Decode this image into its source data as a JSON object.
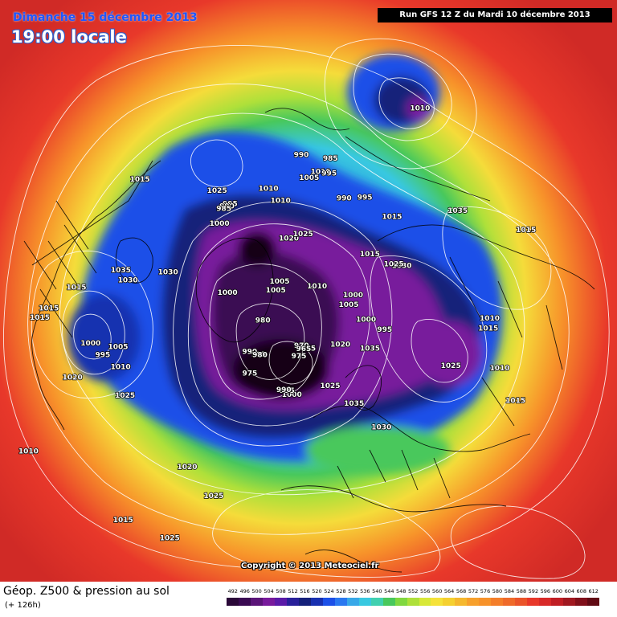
{
  "header": {
    "day_label": "Dimanche 15 décembre 2013",
    "time_label": "19:00 locale",
    "run_label": "Run GFS 12 Z du Mardi 10 décembre 2013"
  },
  "copyright": "Copyright © 2013 Meteociel.fr",
  "footer": {
    "title": "Géop. Z500 & pression au sol",
    "subtitle": "(+ 126h)"
  },
  "colors": {
    "outer": "#e8382a",
    "orange": "#f7922a",
    "yellow": "#f5dc3a",
    "lime": "#aee03a",
    "green": "#48c85c",
    "cyan": "#38c8e0",
    "blue": "#1c50e8",
    "navy": "#14207a",
    "purple": "#781a9c",
    "darkpurple": "#3a0a52",
    "black": "#140418"
  },
  "scale": {
    "labels": [
      "492",
      "496",
      "500",
      "504",
      "508",
      "512",
      "516",
      "520",
      "524",
      "528",
      "532",
      "536",
      "540",
      "544",
      "548",
      "552",
      "556",
      "560",
      "564",
      "568",
      "572",
      "576",
      "580",
      "584",
      "588",
      "592",
      "596",
      "600",
      "604",
      "608",
      "612"
    ],
    "colors": [
      "#2a0838",
      "#3a0a52",
      "#5a1478",
      "#781a9c",
      "#5a1aa8",
      "#28209a",
      "#14207a",
      "#1830b0",
      "#1c50e8",
      "#2a78f0",
      "#38a8e8",
      "#38c8e0",
      "#40d0b0",
      "#48c85c",
      "#80d840",
      "#aee03a",
      "#d8e838",
      "#f5e23a",
      "#f5d030",
      "#f5b82e",
      "#f7a02c",
      "#f7922a",
      "#f47e2a",
      "#ef6a2a",
      "#ea542a",
      "#e8382a",
      "#d82a28",
      "#c01e24",
      "#a01820",
      "#80101a",
      "#600a14"
    ]
  },
  "pressure_labels": [
    {
      "text": "1010",
      "lon": -174,
      "lat": 58
    },
    {
      "text": "1010",
      "lon": -179,
      "lat": 62
    },
    {
      "text": "1015",
      "lon": -136,
      "lat": 36
    },
    {
      "text": "1025",
      "lon": -152,
      "lat": 52
    },
    {
      "text": "1030",
      "lon": -110,
      "lat": 52
    },
    {
      "text": "1035",
      "lon": -108,
      "lat": 40
    },
    {
      "text": "1030",
      "lon": -105,
      "lat": 42
    },
    {
      "text": "1015",
      "lon": -102,
      "lat": 30
    },
    {
      "text": "1015",
      "lon": -97,
      "lat": 24
    },
    {
      "text": "1015",
      "lon": -95,
      "lat": 22
    },
    {
      "text": "1005",
      "lon": -84,
      "lat": 38
    },
    {
      "text": "1010",
      "lon": -78,
      "lat": 37
    },
    {
      "text": "995",
      "lon": -83,
      "lat": 34
    },
    {
      "text": "1000",
      "lon": -87,
      "lat": 32
    },
    {
      "text": "1025",
      "lon": -70,
      "lat": 35
    },
    {
      "text": "1020",
      "lon": -80,
      "lat": 26
    },
    {
      "text": "1015",
      "lon": -48,
      "lat": 17
    },
    {
      "text": "1010",
      "lon": -70,
      "lat": 12
    },
    {
      "text": "1025",
      "lon": -38,
      "lat": 19
    },
    {
      "text": "1000",
      "lon": -142,
      "lat": 59
    },
    {
      "text": "1000",
      "lon": -102,
      "lat": 69
    },
    {
      "text": "995",
      "lon": -153,
      "lat": 57
    },
    {
      "text": "990",
      "lon": -151,
      "lat": 57
    },
    {
      "text": "985",
      "lon": -149,
      "lat": 57
    },
    {
      "text": "1005",
      "lon": -135,
      "lat": 83
    },
    {
      "text": "1020",
      "lon": 180,
      "lat": 73
    },
    {
      "text": "1025",
      "lon": 166,
      "lat": 72
    },
    {
      "text": "1005",
      "lon": 165,
      "lat": 56
    },
    {
      "text": "1010",
      "lon": 160,
      "lat": 54
    },
    {
      "text": "995",
      "lon": 156,
      "lat": 54
    },
    {
      "text": "990",
      "lon": 169,
      "lat": 50
    },
    {
      "text": "985",
      "lon": 157,
      "lat": 50
    },
    {
      "text": "990",
      "lon": 145,
      "lat": 59
    },
    {
      "text": "995",
      "lon": 136,
      "lat": 56
    },
    {
      "text": "1015",
      "lon": 120,
      "lat": 55
    },
    {
      "text": "1010",
      "lon": 137,
      "lat": 30
    },
    {
      "text": "1015",
      "lon": 110,
      "lat": 66
    },
    {
      "text": "1005",
      "lon": -112,
      "lat": 83
    },
    {
      "text": "1010",
      "lon": 106,
      "lat": 84
    },
    {
      "text": "1030",
      "lon": 96,
      "lat": 59
    },
    {
      "text": "1025",
      "lon": 98,
      "lat": 61
    },
    {
      "text": "1035",
      "lon": 108,
      "lat": 40
    },
    {
      "text": "1000",
      "lon": 80,
      "lat": 74
    },
    {
      "text": "1005",
      "lon": 69,
      "lat": 75
    },
    {
      "text": "1000",
      "lon": 60,
      "lat": 69
    },
    {
      "text": "995",
      "lon": 58,
      "lat": 63
    },
    {
      "text": "1015",
      "lon": 96,
      "lat": 27
    },
    {
      "text": "1010",
      "lon": 73,
      "lat": 37
    },
    {
      "text": "1015",
      "lon": 70,
      "lat": 37
    },
    {
      "text": "1020",
      "lon": 30,
      "lat": 71
    },
    {
      "text": "1035",
      "lon": 43,
      "lat": 64
    },
    {
      "text": "1025",
      "lon": 55,
      "lat": 43
    },
    {
      "text": "1010",
      "lon": 60,
      "lat": 32
    },
    {
      "text": "1015",
      "lon": 54,
      "lat": 26
    },
    {
      "text": "1025",
      "lon": 9,
      "lat": 62
    },
    {
      "text": "1035",
      "lon": 17,
      "lat": 55
    },
    {
      "text": "1030",
      "lon": 22,
      "lat": 46
    },
    {
      "text": "975",
      "lon": 0,
      "lat": 74
    },
    {
      "text": "970",
      "lon": -7,
      "lat": 75
    },
    {
      "text": "965",
      "lon": -5,
      "lat": 74
    },
    {
      "text": "975",
      "lon": -10,
      "lat": 72
    },
    {
      "text": "1000",
      "lon": -14,
      "lat": 61
    },
    {
      "text": "995",
      "lon": -17,
      "lat": 62
    },
    {
      "text": "990",
      "lon": -19,
      "lat": 62
    },
    {
      "text": "975",
      "lon": -42,
      "lat": 63
    },
    {
      "text": "990",
      "lon": -51,
      "lat": 68
    },
    {
      "text": "985",
      "lon": -44,
      "lat": 69
    },
    {
      "text": "980",
      "lon": -43,
      "lat": 69
    },
    {
      "text": "980",
      "lon": -65,
      "lat": 77
    },
    {
      "text": "1025",
      "lon": -33,
      "lat": 31
    },
    {
      "text": "1020",
      "lon": -43,
      "lat": 34
    }
  ]
}
